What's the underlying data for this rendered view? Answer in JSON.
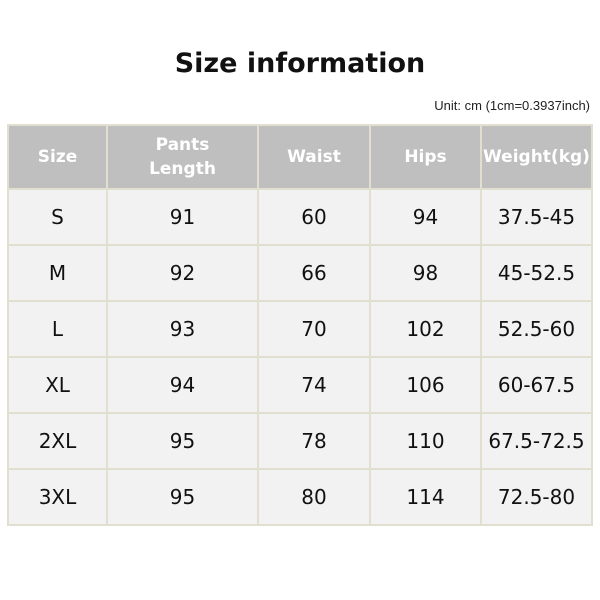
{
  "title": "Size information",
  "unit_note": "Unit: cm (1cm=0.3937inch)",
  "table": {
    "headers": [
      "Size",
      "Pants Length",
      "Waist",
      "Hips",
      "Weight(kg)"
    ],
    "rows": [
      [
        "S",
        "91",
        "60",
        "94",
        "37.5-45"
      ],
      [
        "M",
        "92",
        "66",
        "98",
        "45-52.5"
      ],
      [
        "L",
        "93",
        "70",
        "102",
        "52.5-60"
      ],
      [
        "XL",
        "94",
        "74",
        "106",
        "60-67.5"
      ],
      [
        "2XL",
        "95",
        "78",
        "110",
        "67.5-72.5"
      ],
      [
        "3XL",
        "95",
        "80",
        "114",
        "72.5-80"
      ]
    ]
  },
  "colors": {
    "header_bg": "#bfbfbf",
    "cell_bg": "#f2f2f2",
    "border": "#e3dfd0"
  }
}
